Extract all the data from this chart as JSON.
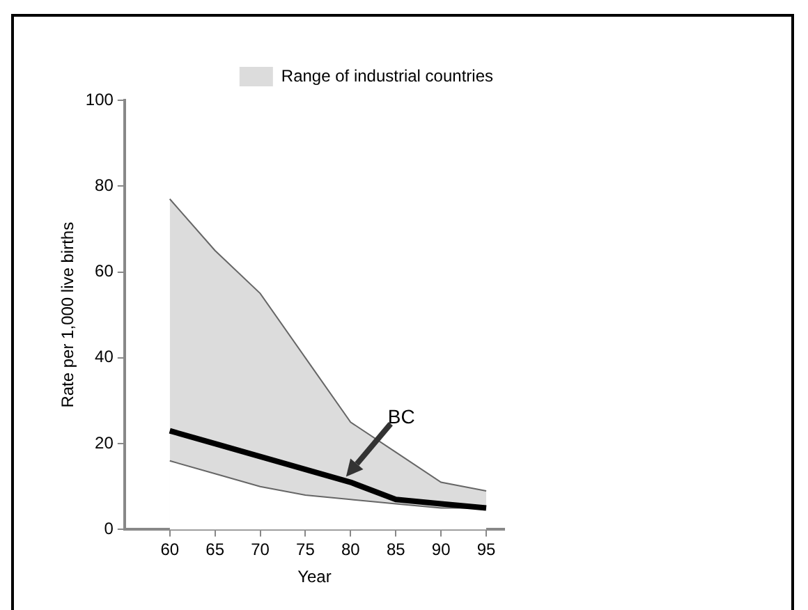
{
  "chart_data": {
    "type": "line",
    "xlabel": "Year",
    "ylabel": "Rate per 1,000 live births",
    "x": [
      60,
      65,
      70,
      75,
      80,
      85,
      90,
      95
    ],
    "xlim": [
      55,
      97
    ],
    "xticks": [
      60,
      65,
      70,
      75,
      80,
      85,
      90,
      95
    ],
    "ylim": [
      0,
      100
    ],
    "yticks": [
      0,
      20,
      40,
      60,
      80,
      100
    ],
    "grid": false,
    "legend": "top right",
    "marker": "none",
    "series": [
      {
        "name": "Range of industrial countries",
        "type": "area",
        "color": "#dcdcdc",
        "values": [
          77,
          65,
          55,
          40,
          25,
          18,
          11,
          9
        ]
      },
      {
        "type": "area",
        "color": "#ffffff",
        "values": [
          16,
          13,
          10,
          8,
          7,
          6,
          5,
          5
        ]
      },
      {
        "name": "BC",
        "type": "line",
        "color": "#000000",
        "values": [
          23,
          20,
          17,
          14,
          11,
          7,
          6,
          5
        ]
      }
    ]
  }
}
